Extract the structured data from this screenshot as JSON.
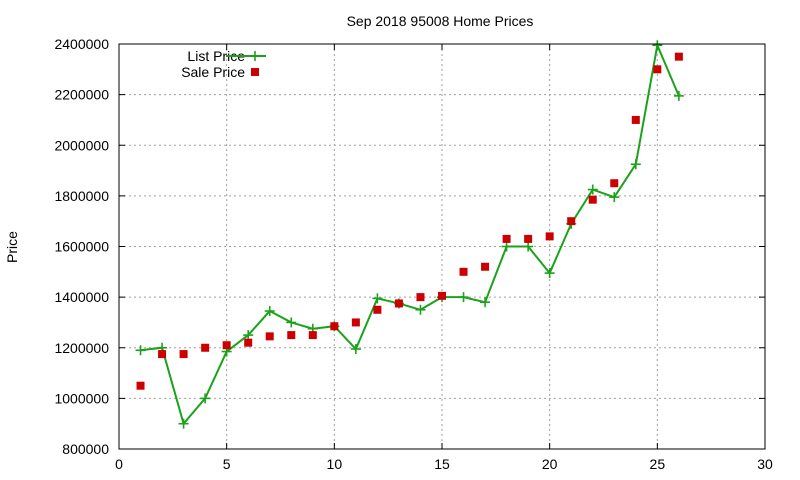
{
  "chart_data": {
    "type": "line",
    "title": "Sep 2018 95008 Home Prices",
    "xlabel": "",
    "ylabel": "Price",
    "xlim": [
      0,
      30
    ],
    "ylim": [
      800000,
      2400000
    ],
    "xticks": [
      0,
      5,
      10,
      15,
      20,
      25,
      30
    ],
    "yticks": [
      800000,
      1000000,
      1200000,
      1400000,
      1600000,
      1800000,
      2000000,
      2200000,
      2400000
    ],
    "grid": true,
    "legend_position": "top-left",
    "series": [
      {
        "name": "List Price",
        "style": "line-points",
        "marker": "plus",
        "color": "#1aa31a",
        "x": [
          1,
          2,
          3,
          4,
          5,
          6,
          7,
          8,
          9,
          10,
          11,
          12,
          13,
          14,
          15,
          16,
          17,
          18,
          19,
          20,
          21,
          22,
          23,
          24,
          25,
          26
        ],
        "y": [
          1190000,
          1200000,
          900000,
          1000000,
          1185000,
          1250000,
          1345000,
          1300000,
          1275000,
          1285000,
          1195000,
          1395000,
          1375000,
          1350000,
          1400000,
          1400000,
          1380000,
          1600000,
          1600000,
          1495000,
          1690000,
          1825000,
          1795000,
          1925000,
          2395000,
          2195000
        ]
      },
      {
        "name": "Sale Price",
        "style": "points",
        "marker": "square",
        "color": "#cc0000",
        "x": [
          1,
          2,
          3,
          4,
          5,
          6,
          7,
          8,
          9,
          10,
          11,
          12,
          13,
          14,
          15,
          16,
          17,
          18,
          19,
          20,
          21,
          22,
          23,
          24,
          25,
          26
        ],
        "y": [
          1050000,
          1175000,
          1175000,
          1200000,
          1210000,
          1220000,
          1245000,
          1250000,
          1250000,
          1285000,
          1300000,
          1350000,
          1375000,
          1400000,
          1405000,
          1500000,
          1520000,
          1630000,
          1630000,
          1640000,
          1700000,
          1785000,
          1850000,
          2100000,
          2300000,
          2350000
        ]
      }
    ]
  }
}
